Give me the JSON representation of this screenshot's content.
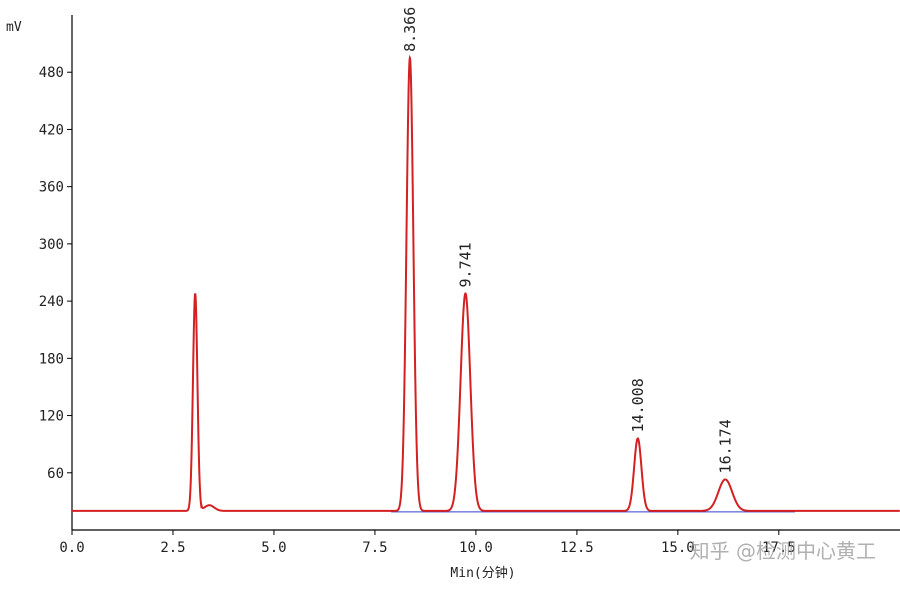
{
  "chart_data": {
    "type": "line",
    "ylabel": "mV",
    "xlabel": "Min(分钟)",
    "xlim": [
      0,
      20.5
    ],
    "ylim": [
      0,
      540
    ],
    "baseline": 20,
    "x_ticks": [
      0.0,
      2.5,
      5.0,
      7.5,
      10.0,
      12.5,
      15.0,
      17.5
    ],
    "x_tick_labels": [
      "0.0",
      "2.5",
      "5.0",
      "7.5",
      "10.0",
      "12.5",
      "15.0",
      "17.5"
    ],
    "y_ticks": [
      60,
      120,
      180,
      240,
      300,
      360,
      420,
      480
    ],
    "y_tick_labels": [
      "60",
      "120",
      "180",
      "240",
      "300",
      "360",
      "420",
      "480"
    ],
    "peaks": [
      {
        "rt": 3.05,
        "height": 248,
        "label": ""
      },
      {
        "rt": 8.366,
        "height": 495,
        "label": "8.366"
      },
      {
        "rt": 9.741,
        "height": 248,
        "label": "9.741"
      },
      {
        "rt": 14.008,
        "height": 96,
        "label": "14.008"
      },
      {
        "rt": 16.174,
        "height": 53,
        "label": "16.174"
      }
    ],
    "trace_color": "#d42020",
    "baseline_color": "#3344cc"
  },
  "watermark": "知乎 @检测中心黄工"
}
